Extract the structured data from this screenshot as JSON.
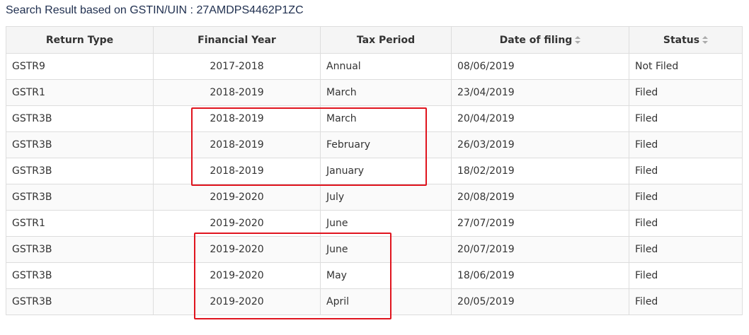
{
  "search_title": "Search Result based on GSTIN/UIN : 27AMDPS4462P1ZC",
  "table": {
    "headers": [
      {
        "label": "Return Type",
        "sortable": false
      },
      {
        "label": "Financial Year",
        "sortable": false
      },
      {
        "label": "Tax Period",
        "sortable": false
      },
      {
        "label": "Date of filing",
        "sortable": true
      },
      {
        "label": "Status",
        "sortable": true
      }
    ],
    "rows": [
      {
        "return_type": "GSTR9",
        "financial_year": "2017-2018",
        "tax_period": "Annual",
        "date_of_filing": "08/06/2019",
        "status": "Not Filed"
      },
      {
        "return_type": "GSTR1",
        "financial_year": "2018-2019",
        "tax_period": "March",
        "date_of_filing": "23/04/2019",
        "status": "Filed"
      },
      {
        "return_type": "GSTR3B",
        "financial_year": "2018-2019",
        "tax_period": "March",
        "date_of_filing": "20/04/2019",
        "status": "Filed"
      },
      {
        "return_type": "GSTR3B",
        "financial_year": "2018-2019",
        "tax_period": "February",
        "date_of_filing": "26/03/2019",
        "status": "Filed"
      },
      {
        "return_type": "GSTR3B",
        "financial_year": "2018-2019",
        "tax_period": "January",
        "date_of_filing": "18/02/2019",
        "status": "Filed"
      },
      {
        "return_type": "GSTR3B",
        "financial_year": "2019-2020",
        "tax_period": "July",
        "date_of_filing": "20/08/2019",
        "status": "Filed"
      },
      {
        "return_type": "GSTR1",
        "financial_year": "2019-2020",
        "tax_period": "June",
        "date_of_filing": "27/07/2019",
        "status": "Filed"
      },
      {
        "return_type": "GSTR3B",
        "financial_year": "2019-2020",
        "tax_period": "June",
        "date_of_filing": "20/07/2019",
        "status": "Filed"
      },
      {
        "return_type": "GSTR3B",
        "financial_year": "2019-2020",
        "tax_period": "May",
        "date_of_filing": "18/06/2019",
        "status": "Filed"
      },
      {
        "return_type": "GSTR3B",
        "financial_year": "2019-2020",
        "tax_period": "April",
        "date_of_filing": "20/05/2019",
        "status": "Filed"
      }
    ]
  },
  "colors": {
    "highlight": "#e0141e",
    "header_bg": "#f5f5f5",
    "border": "#dddddd",
    "title_text": "#1f2f4f"
  },
  "icons": {
    "sort": "sort-icon"
  }
}
